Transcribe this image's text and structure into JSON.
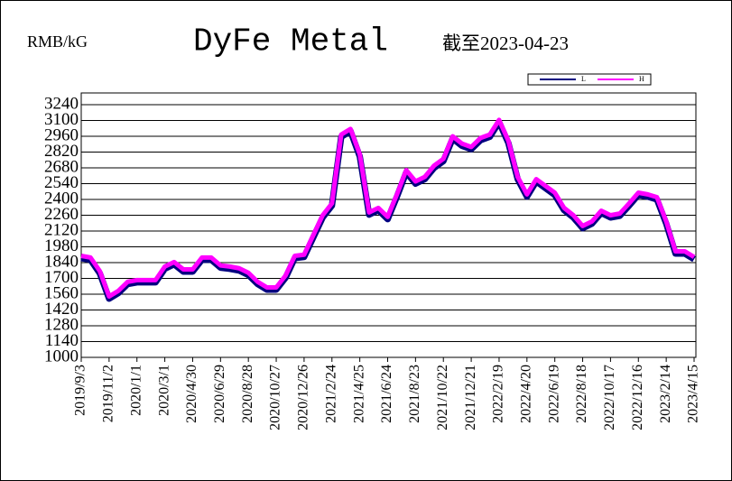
{
  "chart_data": {
    "type": "line",
    "title": "DyFe Metal",
    "unit_label": "RMB/kG",
    "subtitle": "截至2023-04-23",
    "categories": [
      "2019/9/3",
      null,
      null,
      "2019/11/2",
      null,
      null,
      "2020/1/1",
      null,
      null,
      "2020/3/1",
      null,
      null,
      "2020/4/30",
      null,
      null,
      "2020/6/29",
      null,
      null,
      "2020/8/28",
      null,
      null,
      "2020/10/27",
      null,
      null,
      "2020/12/26",
      null,
      null,
      "2021/2/24",
      null,
      null,
      "2021/4/25",
      null,
      null,
      "2021/6/24",
      null,
      null,
      "2021/8/23",
      null,
      null,
      "2021/10/22",
      null,
      null,
      "2021/12/21",
      null,
      null,
      "2022/2/19",
      null,
      null,
      "2022/4/20",
      null,
      null,
      "2022/6/19",
      null,
      null,
      "2022/8/18",
      null,
      null,
      "2022/10/17",
      null,
      null,
      "2022/12/16",
      null,
      null,
      "2023/2/14",
      null,
      null,
      "2023/4/15"
    ],
    "series": [
      {
        "name": "L",
        "color": "#000080",
        "values": [
          1880,
          1865,
          1745,
          1520,
          1570,
          1650,
          1665,
          1665,
          1665,
          1785,
          1825,
          1760,
          1760,
          1865,
          1865,
          1795,
          1785,
          1770,
          1730,
          1650,
          1600,
          1600,
          1705,
          1880,
          1890,
          2065,
          2240,
          2345,
          2955,
          3005,
          2780,
          2265,
          2305,
          2225,
          2425,
          2640,
          2540,
          2580,
          2680,
          2740,
          2940,
          2875,
          2845,
          2925,
          2955,
          3085,
          2900,
          2580,
          2425,
          2560,
          2500,
          2440,
          2305,
          2240,
          2145,
          2185,
          2280,
          2240,
          2255,
          2345,
          2440,
          2425,
          2400,
          2185,
          1920,
          1920,
          1870
        ]
      },
      {
        "name": "H",
        "color": "#ff00ff",
        "values": [
          1900,
          1885,
          1765,
          1540,
          1590,
          1670,
          1685,
          1685,
          1685,
          1805,
          1845,
          1780,
          1780,
          1885,
          1885,
          1815,
          1805,
          1790,
          1750,
          1670,
          1620,
          1620,
          1725,
          1900,
          1910,
          2085,
          2260,
          2365,
          2975,
          3025,
          2800,
          2285,
          2325,
          2245,
          2445,
          2660,
          2560,
          2600,
          2700,
          2760,
          2960,
          2895,
          2865,
          2945,
          2975,
          3105,
          2920,
          2600,
          2445,
          2580,
          2520,
          2460,
          2325,
          2260,
          2165,
          2205,
          2300,
          2260,
          2275,
          2365,
          2460,
          2445,
          2420,
          2205,
          1940,
          1940,
          1890
        ]
      }
    ],
    "ylim": [
      1000,
      3240
    ],
    "yticks": [
      1000,
      1140,
      1280,
      1420,
      1560,
      1700,
      1840,
      1980,
      2120,
      2260,
      2400,
      2540,
      2680,
      2820,
      2960,
      3100,
      3240
    ],
    "grid": true
  }
}
